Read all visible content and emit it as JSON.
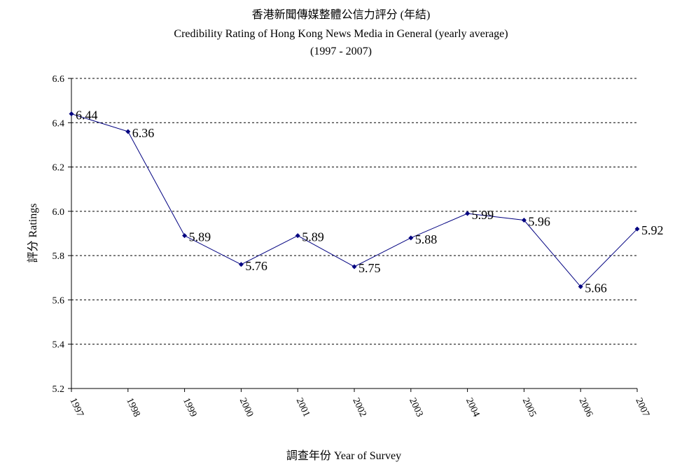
{
  "chart_data": {
    "type": "line",
    "title": "香港新聞傳媒整體公信力評分  (年結)",
    "subtitle": "Credibility Rating of Hong Kong News Media in General (yearly average)",
    "period": "(1997 - 2007)",
    "y_label": "評分 Ratings",
    "x_label": "調查年份 Year of Survey",
    "categories": [
      "1997",
      "1998",
      "1999",
      "2000",
      "2001",
      "2002",
      "2003",
      "2004",
      "2005",
      "2006",
      "2007"
    ],
    "values": [
      6.44,
      6.36,
      5.89,
      5.76,
      5.89,
      5.75,
      5.88,
      5.99,
      5.96,
      5.66,
      5.92
    ],
    "color": "#000080",
    "ylim": [
      5.2,
      6.6
    ],
    "yticks": [
      5.2,
      5.4,
      5.6,
      5.8,
      {
        "value": 6,
        "label": "6.0"
      },
      6.2,
      6.4,
      6.6
    ],
    "grid": true
  }
}
